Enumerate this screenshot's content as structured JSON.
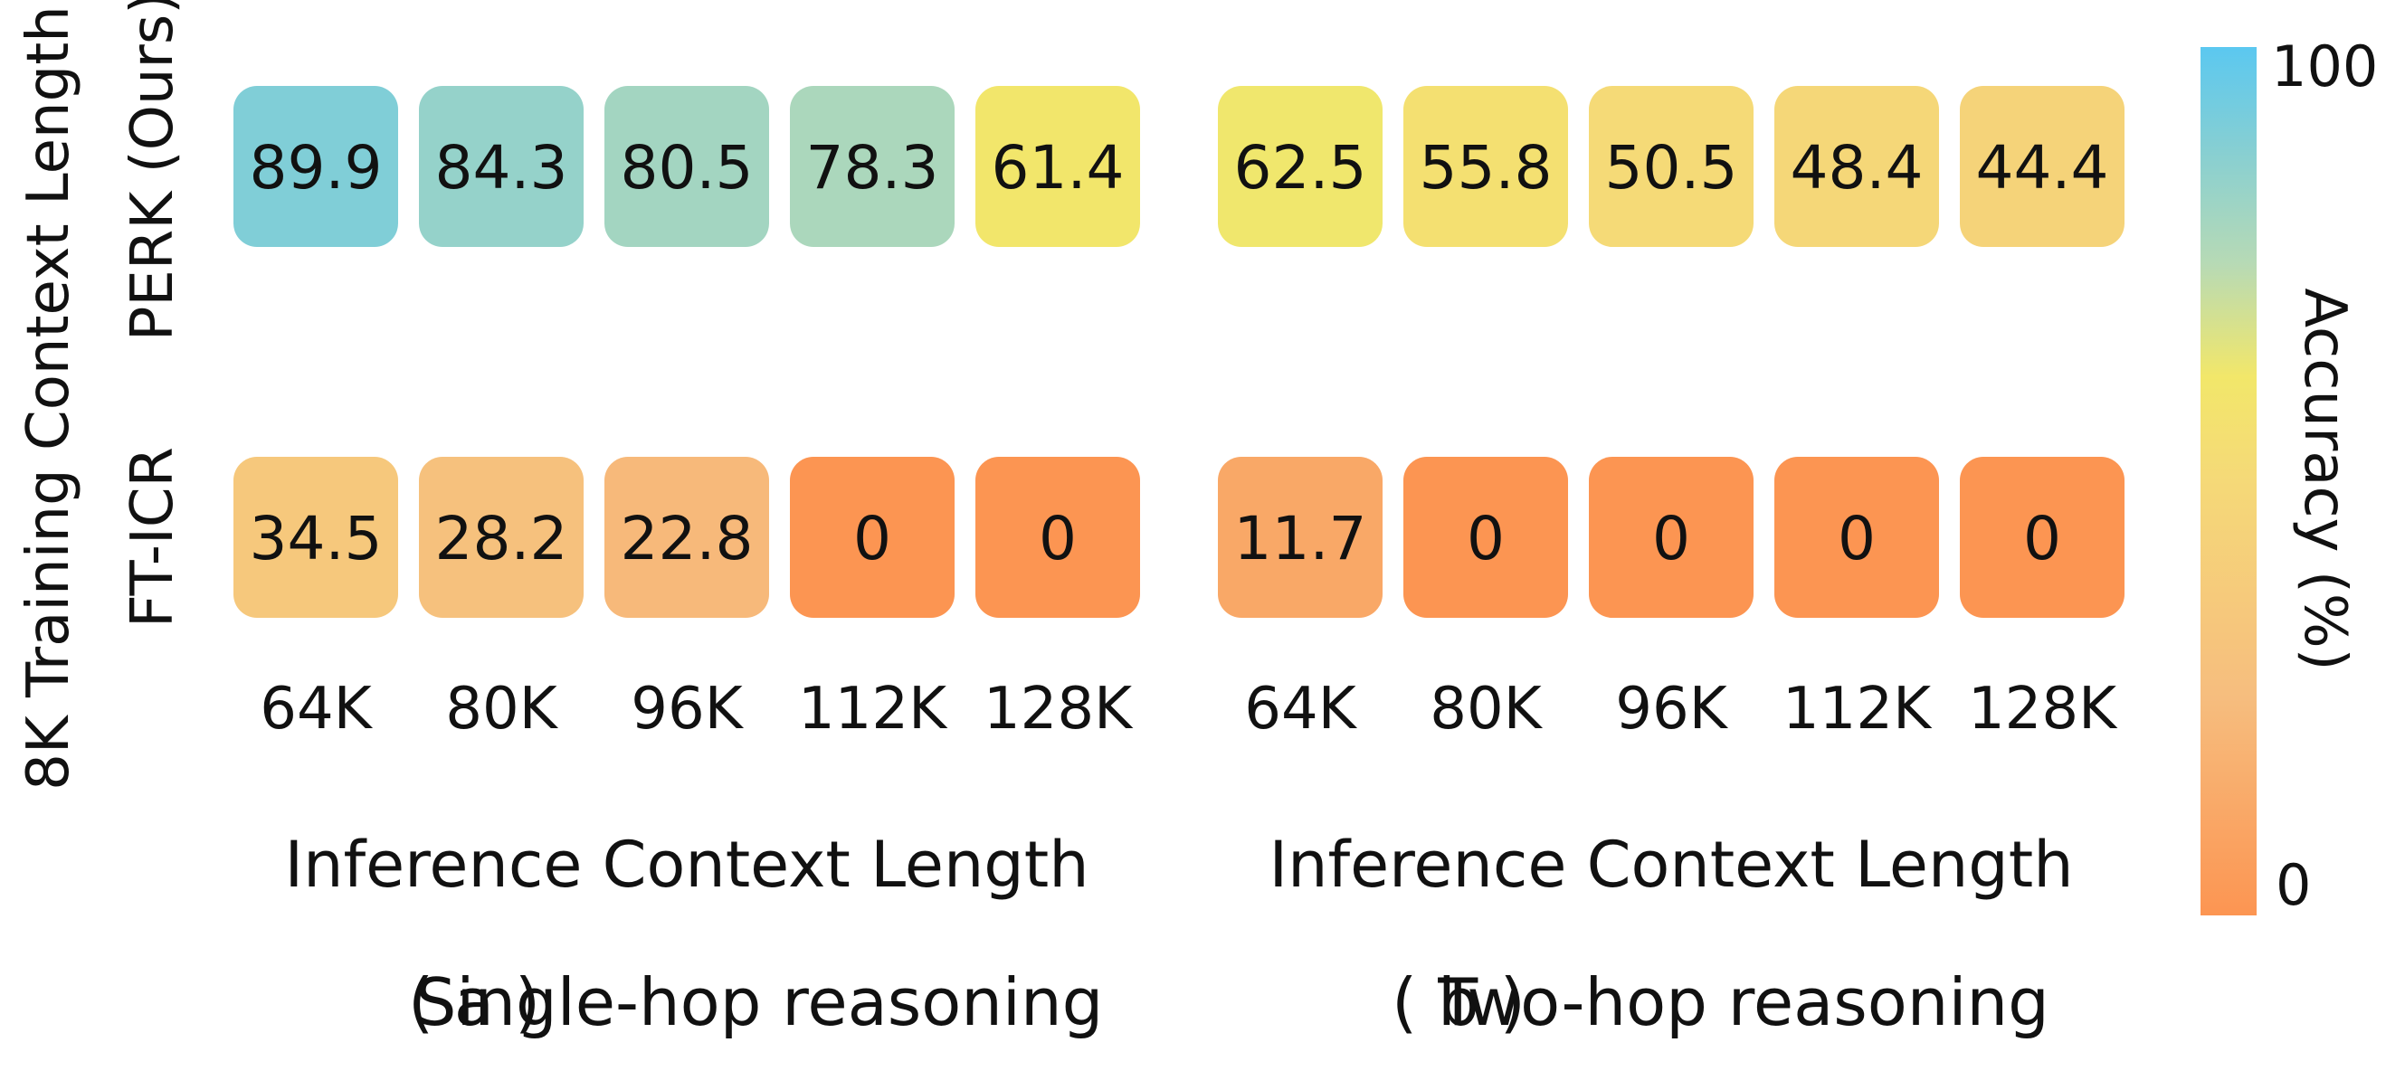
{
  "chart_data": [
    {
      "type": "heatmap",
      "panel": "a",
      "caption_letter": "( a )",
      "caption_text": "Single-hop reasoning",
      "xlabel": "Inference Context Length",
      "ylabel": "8K Training Context Length",
      "x": [
        "64K",
        "80K",
        "96K",
        "112K",
        "128K"
      ],
      "rows": [
        "PERK (Ours)",
        "FT-ICR"
      ],
      "values": [
        [
          89.9,
          84.3,
          80.5,
          78.3,
          61.4
        ],
        [
          34.5,
          28.2,
          22.8,
          0,
          0
        ]
      ]
    },
    {
      "type": "heatmap",
      "panel": "b",
      "caption_letter": "( b )",
      "caption_text": "Two-hop reasoning",
      "xlabel": "Inference Context Length",
      "x": [
        "64K",
        "80K",
        "96K",
        "112K",
        "128K"
      ],
      "rows": [
        "PERK (Ours)",
        "FT-ICR"
      ],
      "values": [
        [
          62.5,
          55.8,
          50.5,
          48.4,
          44.4
        ],
        [
          11.7,
          0,
          0,
          0,
          0
        ]
      ]
    }
  ],
  "colorbar": {
    "label": "Accuracy (%)",
    "min": 0,
    "max": 100,
    "min_label": "0",
    "max_label": "100",
    "stops": [
      {
        "value": 0,
        "color": "#fc9552"
      },
      {
        "value": 25,
        "color": "#f6bd7e"
      },
      {
        "value": 50,
        "color": "#f5d978"
      },
      {
        "value": 62,
        "color": "#f2e76a"
      },
      {
        "value": 75,
        "color": "#b7dab5"
      },
      {
        "value": 88,
        "color": "#87cfd2"
      },
      {
        "value": 100,
        "color": "#5bc8f0"
      }
    ]
  }
}
